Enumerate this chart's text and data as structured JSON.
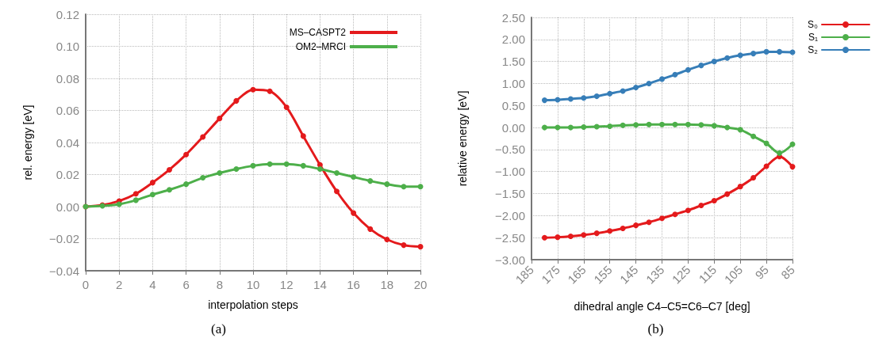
{
  "chart_data": [
    {
      "type": "line",
      "xlabel": "interpolation steps",
      "ylabel": "rel. energy [eV]",
      "x": [
        0,
        1,
        2,
        3,
        4,
        5,
        6,
        7,
        8,
        9,
        10,
        11,
        12,
        13,
        14,
        15,
        16,
        17,
        18,
        19,
        20
      ],
      "series": [
        {
          "name": "MS–CASPT2",
          "color": "#e41a1c",
          "values": [
            0,
            0.001,
            0.0035,
            0.008,
            0.015,
            0.023,
            0.0325,
            0.0435,
            0.055,
            0.066,
            0.073,
            0.072,
            0.062,
            0.044,
            0.026,
            0.0095,
            -0.004,
            -0.014,
            -0.0205,
            -0.024,
            -0.025
          ]
        },
        {
          "name": "OM2–MRCI",
          "color": "#4daf4a",
          "values": [
            0,
            0.0005,
            0.0015,
            0.004,
            0.0075,
            0.0105,
            0.014,
            0.018,
            0.021,
            0.0235,
            0.0255,
            0.0265,
            0.0265,
            0.0255,
            0.0235,
            0.021,
            0.0185,
            0.016,
            0.014,
            0.0125,
            0.0125
          ]
        }
      ],
      "xlim": [
        0,
        20
      ],
      "xticks": [
        0,
        2,
        4,
        6,
        8,
        10,
        12,
        14,
        16,
        18,
        20
      ],
      "ylim": [
        -0.04,
        0.12
      ],
      "yticks": [
        {
          "value": -0.04,
          "label": "−0.04"
        },
        {
          "value": -0.02,
          "label": "−0.02"
        },
        {
          "value": 0,
          "label": "0.00"
        },
        {
          "value": 0.02,
          "label": "0.02"
        },
        {
          "value": 0.04,
          "label": "0.04"
        },
        {
          "value": 0.06,
          "label": "0.06"
        },
        {
          "value": 0.08,
          "label": "0.08"
        },
        {
          "value": 0.1,
          "label": "0.10"
        },
        {
          "value": 0.12,
          "label": "0.12"
        }
      ],
      "grid": true,
      "legend": "top right",
      "marker": "circle",
      "line_style": "solid",
      "annotations": [
        "(a)"
      ]
    },
    {
      "type": "line",
      "xlabel": "dihedral angle C4–C5=C6–C7 [deg]",
      "ylabel": "relative energy [eV]",
      "x": [
        180,
        175,
        170,
        165,
        160,
        155,
        150,
        145,
        140,
        135,
        130,
        125,
        120,
        115,
        110,
        105,
        100,
        95,
        90,
        85
      ],
      "series": [
        {
          "name": "S₀",
          "color": "#e41a1c",
          "values": [
            -2.5,
            -2.49,
            -2.47,
            -2.44,
            -2.4,
            -2.35,
            -2.29,
            -2.22,
            -2.15,
            -2.06,
            -1.97,
            -1.88,
            -1.77,
            -1.66,
            -1.51,
            -1.34,
            -1.14,
            -0.88,
            -0.66,
            -0.89
          ]
        },
        {
          "name": "S₁",
          "color": "#4daf4a",
          "values": [
            0,
            0,
            0,
            0.01,
            0.02,
            0.03,
            0.05,
            0.06,
            0.07,
            0.07,
            0.07,
            0.07,
            0.06,
            0.04,
            0,
            -0.05,
            -0.2,
            -0.36,
            -0.58,
            -0.38
          ]
        },
        {
          "name": "S₂",
          "color": "#377eb8",
          "values": [
            0.62,
            0.63,
            0.65,
            0.67,
            0.71,
            0.77,
            0.83,
            0.91,
            1.0,
            1.1,
            1.2,
            1.31,
            1.41,
            1.5,
            1.58,
            1.64,
            1.68,
            1.72,
            1.72,
            1.71
          ]
        }
      ],
      "xlim": [
        185,
        85
      ],
      "xticks": [
        185,
        175,
        165,
        155,
        145,
        135,
        125,
        115,
        105,
        95,
        85
      ],
      "ylim": [
        -3,
        2.5
      ],
      "yticks": [
        {
          "value": -3,
          "label": "−3.00"
        },
        {
          "value": -2.5,
          "label": "−2.50"
        },
        {
          "value": -2,
          "label": "−2.00"
        },
        {
          "value": -1.5,
          "label": "−1.50"
        },
        {
          "value": -1,
          "label": "−1.00"
        },
        {
          "value": -0.5,
          "label": "−0.50"
        },
        {
          "value": 0,
          "label": "0.00"
        },
        {
          "value": 0.5,
          "label": "0.50"
        },
        {
          "value": 1,
          "label": "1.00"
        },
        {
          "value": 1.5,
          "label": "1.50"
        },
        {
          "value": 2,
          "label": "2.00"
        },
        {
          "value": 2.5,
          "label": "2.50"
        }
      ],
      "grid": true,
      "legend": "right",
      "marker": "circle",
      "line_style": "solid",
      "annotations": [
        "(b)"
      ]
    }
  ]
}
